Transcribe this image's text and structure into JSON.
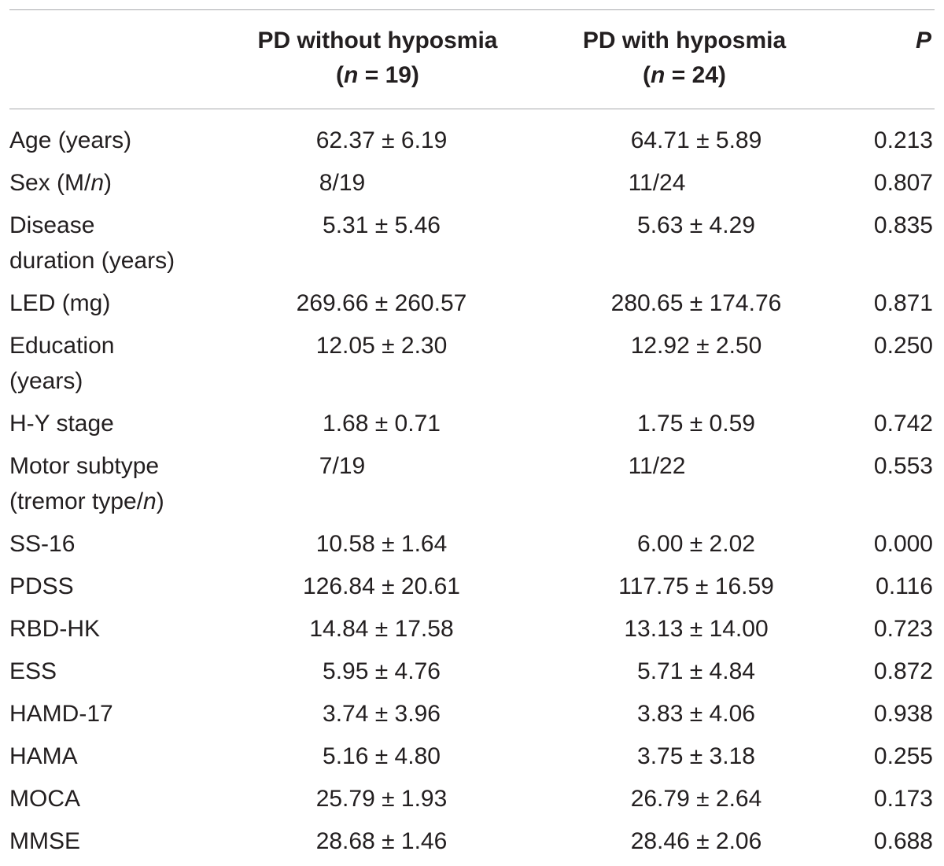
{
  "header": {
    "col1_line1": "PD without hyposmia",
    "col1_n_pre": "(",
    "col1_n_var": "n",
    "col1_n_post": " = 19)",
    "col2_line1": "PD with hyposmia",
    "col2_n_pre": "(",
    "col2_n_var": "n",
    "col2_n_post": " = 24)",
    "p_label": "P"
  },
  "rows": [
    {
      "label": "Age (years)",
      "v1": "62.37 ± 6.19",
      "v2": "64.71 ± 5.89",
      "p": "0.213"
    },
    {
      "label_pre": "Sex (M/",
      "label_it": "n",
      "label_post": ")",
      "v1": "8/19",
      "v2": "11/24",
      "p": "0.807"
    },
    {
      "label_l1": "Disease",
      "label_l2": "duration (years)",
      "v1": "5.31 ± 5.46",
      "v2": "5.63 ± 4.29",
      "p": "0.835"
    },
    {
      "label": "LED (mg)",
      "v1": "269.66 ± 260.57",
      "v2": "280.65 ± 174.76",
      "p": "0.871"
    },
    {
      "label_l1": "Education",
      "label_l2": "(years)",
      "v1": "12.05 ± 2.30",
      "v2": "12.92 ± 2.50",
      "p": "0.250"
    },
    {
      "label": "H-Y stage",
      "v1": "1.68 ± 0.71",
      "v2": "1.75 ± 0.59",
      "p": "0.742"
    },
    {
      "label_l1": "Motor subtype",
      "label_l2_pre": "(tremor type/",
      "label_l2_it": "n",
      "label_l2_post": ")",
      "v1": "7/19",
      "v2": "11/22",
      "p": "0.553"
    },
    {
      "label": "SS-16",
      "v1": "10.58 ± 1.64",
      "v2": "6.00 ± 2.02",
      "p": "0.000"
    },
    {
      "label": "PDSS",
      "v1": "126.84 ± 20.61",
      "v2": "117.75 ± 16.59",
      "p": "0.116"
    },
    {
      "label": "RBD-HK",
      "v1": "14.84 ± 17.58",
      "v2": "13.13 ± 14.00",
      "p": "0.723"
    },
    {
      "label": "ESS",
      "v1": "5.95 ± 4.76",
      "v2": "5.71 ± 4.84",
      "p": "0.872"
    },
    {
      "label": "HAMD-17",
      "v1": "3.74 ± 3.96",
      "v2": "3.83 ± 4.06",
      "p": "0.938"
    },
    {
      "label": "HAMA",
      "v1": "5.16 ± 4.80",
      "v2": "3.75 ± 3.18",
      "p": "0.255"
    },
    {
      "label": "MOCA",
      "v1": "25.79 ± 1.93",
      "v2": "26.79 ± 2.64",
      "p": "0.173"
    },
    {
      "label": "MMSE",
      "v1": "28.68 ± 1.46",
      "v2": "28.46 ± 2.06",
      "p": "0.688"
    }
  ]
}
